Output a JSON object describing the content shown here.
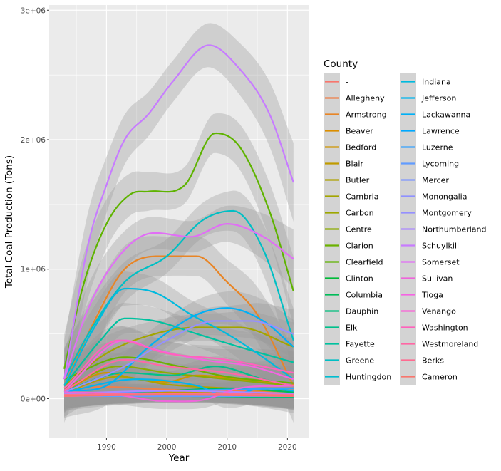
{
  "chart_data": {
    "type": "line",
    "xlabel": "Year",
    "ylabel": "Total Coal Production (Tons)",
    "xlim": [
      1980.5,
      2023.5
    ],
    "ylim": [
      -300000,
      3040000
    ],
    "x_ticks": [
      1990,
      2000,
      2010,
      2020
    ],
    "y_ticks": [
      {
        "value": 0,
        "label": "0e+00"
      },
      {
        "value": 1000000,
        "label": "1e+06"
      },
      {
        "value": 2000000,
        "label": "2e+06"
      },
      {
        "value": 3000000,
        "label": "3e+06"
      }
    ],
    "legend_title": "County",
    "legend_position": "right",
    "grid": true,
    "smoothing": "loess with confidence band",
    "series": [
      {
        "name": "-",
        "color": "#F8766D",
        "band": 60000,
        "points": [
          [
            1983,
            30000
          ],
          [
            1990,
            40000
          ],
          [
            2000,
            50000
          ],
          [
            2010,
            60000
          ],
          [
            2021,
            60000
          ]
        ]
      },
      {
        "name": "Allegheny",
        "color": "#EF7F49",
        "band": 80000,
        "points": [
          [
            1983,
            80000
          ],
          [
            1990,
            90000
          ],
          [
            2000,
            70000
          ],
          [
            2010,
            60000
          ],
          [
            2021,
            40000
          ]
        ]
      },
      {
        "name": "Armstrong",
        "color": "#E88526",
        "band": 150000,
        "points": [
          [
            1983,
            100000
          ],
          [
            1988,
            600000
          ],
          [
            1993,
            1000000
          ],
          [
            1999,
            1100000
          ],
          [
            2005,
            1100000
          ],
          [
            2010,
            900000
          ],
          [
            2015,
            650000
          ],
          [
            2021,
            100000
          ]
        ]
      },
      {
        "name": "Beaver",
        "color": "#DB8E00",
        "band": 60000,
        "points": [
          [
            1983,
            20000
          ],
          [
            2000,
            30000
          ],
          [
            2021,
            30000
          ]
        ]
      },
      {
        "name": "Bedford",
        "color": "#CF9400",
        "band": 80000,
        "points": [
          [
            1983,
            60000
          ],
          [
            1990,
            200000
          ],
          [
            1995,
            150000
          ],
          [
            2000,
            130000
          ],
          [
            2005,
            180000
          ],
          [
            2012,
            150000
          ],
          [
            2021,
            100000
          ]
        ]
      },
      {
        "name": "Blair",
        "color": "#C09B00",
        "band": 60000,
        "points": [
          [
            1983,
            40000
          ],
          [
            2000,
            50000
          ],
          [
            2021,
            30000
          ]
        ]
      },
      {
        "name": "Butler",
        "color": "#AFA100",
        "band": 70000,
        "points": [
          [
            1983,
            50000
          ],
          [
            1992,
            170000
          ],
          [
            2000,
            110000
          ],
          [
            2010,
            80000
          ],
          [
            2021,
            50000
          ]
        ]
      },
      {
        "name": "Cambria",
        "color": "#A3A500",
        "band": 100000,
        "points": [
          [
            1983,
            100000
          ],
          [
            1990,
            350000
          ],
          [
            1998,
            500000
          ],
          [
            2005,
            550000
          ],
          [
            2012,
            550000
          ],
          [
            2021,
            400000
          ]
        ]
      },
      {
        "name": "Carbon",
        "color": "#9DA700",
        "band": 50000,
        "points": [
          [
            1983,
            30000
          ],
          [
            2000,
            40000
          ],
          [
            2021,
            20000
          ]
        ]
      },
      {
        "name": "Centre",
        "color": "#8BAC00",
        "band": 80000,
        "points": [
          [
            1983,
            80000
          ],
          [
            1992,
            250000
          ],
          [
            2000,
            200000
          ],
          [
            2010,
            150000
          ],
          [
            2021,
            100000
          ]
        ]
      },
      {
        "name": "Clarion",
        "color": "#6BB100",
        "band": 100000,
        "points": [
          [
            1983,
            150000
          ],
          [
            1993,
            320000
          ],
          [
            2002,
            250000
          ],
          [
            2010,
            170000
          ],
          [
            2021,
            120000
          ]
        ]
      },
      {
        "name": "Clearfield",
        "color": "#5EB300",
        "band": 140000,
        "points": [
          [
            1983,
            230000
          ],
          [
            1986,
            850000
          ],
          [
            1990,
            1350000
          ],
          [
            1994,
            1580000
          ],
          [
            1997,
            1600000
          ],
          [
            2003,
            1650000
          ],
          [
            2008,
            2050000
          ],
          [
            2012,
            1950000
          ],
          [
            2017,
            1450000
          ],
          [
            2021,
            830000
          ]
        ]
      },
      {
        "name": "Clinton",
        "color": "#00BA38",
        "band": 50000,
        "points": [
          [
            1983,
            20000
          ],
          [
            2000,
            30000
          ],
          [
            2021,
            20000
          ]
        ]
      },
      {
        "name": "Columbia",
        "color": "#00BC59",
        "band": 50000,
        "points": [
          [
            1983,
            40000
          ],
          [
            2000,
            60000
          ],
          [
            2010,
            80000
          ],
          [
            2021,
            50000
          ]
        ]
      },
      {
        "name": "Dauphin",
        "color": "#00BF7D",
        "band": 50000,
        "points": [
          [
            1983,
            20000
          ],
          [
            2000,
            20000
          ],
          [
            2021,
            10000
          ]
        ]
      },
      {
        "name": "Elk",
        "color": "#00C08B",
        "band": 70000,
        "points": [
          [
            1983,
            60000
          ],
          [
            1993,
            200000
          ],
          [
            2001,
            180000
          ],
          [
            2008,
            250000
          ],
          [
            2016,
            150000
          ],
          [
            2021,
            100000
          ]
        ]
      },
      {
        "name": "Fayette",
        "color": "#00C19F",
        "band": 100000,
        "points": [
          [
            1983,
            100000
          ],
          [
            1989,
            450000
          ],
          [
            1993,
            620000
          ],
          [
            1998,
            600000
          ],
          [
            2005,
            500000
          ],
          [
            2012,
            400000
          ],
          [
            2021,
            280000
          ]
        ]
      },
      {
        "name": "Greene",
        "color": "#00BFC4",
        "band": 130000,
        "points": [
          [
            1983,
            150000
          ],
          [
            1987,
            500000
          ],
          [
            1993,
            900000
          ],
          [
            2000,
            1100000
          ],
          [
            2006,
            1380000
          ],
          [
            2011,
            1450000
          ],
          [
            2016,
            1150000
          ],
          [
            2021,
            450000
          ]
        ]
      },
      {
        "name": "Huntingdon",
        "color": "#00BDD0",
        "band": 50000,
        "points": [
          [
            1983,
            20000
          ],
          [
            2000,
            30000
          ],
          [
            2021,
            20000
          ]
        ]
      },
      {
        "name": "Indiana",
        "color": "#00BADE",
        "band": 110000,
        "points": [
          [
            1983,
            100000
          ],
          [
            1988,
            550000
          ],
          [
            1993,
            850000
          ],
          [
            1998,
            820000
          ],
          [
            2004,
            650000
          ],
          [
            2010,
            500000
          ],
          [
            2015,
            350000
          ],
          [
            2021,
            150000
          ]
        ]
      },
      {
        "name": "Jefferson",
        "color": "#00B4EF",
        "band": 80000,
        "points": [
          [
            1983,
            50000
          ],
          [
            1995,
            150000
          ],
          [
            2005,
            100000
          ],
          [
            2010,
            20000
          ],
          [
            2016,
            80000
          ],
          [
            2021,
            60000
          ]
        ]
      },
      {
        "name": "Lackawanna",
        "color": "#00B0F6",
        "band": 110000,
        "points": [
          [
            1983,
            60000
          ],
          [
            1990,
            100000
          ],
          [
            1997,
            400000
          ],
          [
            2005,
            650000
          ],
          [
            2010,
            700000
          ],
          [
            2016,
            600000
          ],
          [
            2021,
            400000
          ]
        ]
      },
      {
        "name": "Lawrence",
        "color": "#00A9FF",
        "band": 50000,
        "points": [
          [
            1983,
            20000
          ],
          [
            2000,
            30000
          ],
          [
            2021,
            20000
          ]
        ]
      },
      {
        "name": "Luzerne",
        "color": "#35A2FF",
        "band": 50000,
        "points": [
          [
            1983,
            40000
          ],
          [
            2000,
            60000
          ],
          [
            2021,
            80000
          ]
        ]
      },
      {
        "name": "Lycoming",
        "color": "#619CFF",
        "band": 50000,
        "points": [
          [
            1983,
            20000
          ],
          [
            2000,
            20000
          ],
          [
            2021,
            20000
          ]
        ]
      },
      {
        "name": "Mercer",
        "color": "#7F96FF",
        "band": 50000,
        "points": [
          [
            1983,
            30000
          ],
          [
            2000,
            40000
          ],
          [
            2021,
            30000
          ]
        ]
      },
      {
        "name": "Monongalia",
        "color": "#8F91FF",
        "band": 50000,
        "points": [
          [
            1983,
            20000
          ],
          [
            2000,
            30000
          ],
          [
            2021,
            20000
          ]
        ]
      },
      {
        "name": "Montgomery",
        "color": "#9590FF",
        "band": 100000,
        "points": [
          [
            1983,
            50000
          ],
          [
            1993,
            250000
          ],
          [
            2000,
            450000
          ],
          [
            2008,
            600000
          ],
          [
            2014,
            600000
          ],
          [
            2021,
            500000
          ]
        ]
      },
      {
        "name": "Northumberland",
        "color": "#AC88FF",
        "band": 60000,
        "points": [
          [
            1983,
            40000
          ],
          [
            2000,
            60000
          ],
          [
            2021,
            40000
          ]
        ]
      },
      {
        "name": "Schuylkill",
        "color": "#C77CFF",
        "band": 160000,
        "points": [
          [
            1983,
            150000
          ],
          [
            1987,
            1200000
          ],
          [
            1990,
            1650000
          ],
          [
            1993,
            2000000
          ],
          [
            1997,
            2200000
          ],
          [
            2001,
            2450000
          ],
          [
            2007,
            2730000
          ],
          [
            2012,
            2550000
          ],
          [
            2017,
            2200000
          ],
          [
            2021,
            1670000
          ]
        ]
      },
      {
        "name": "Somerset",
        "color": "#E16EF6",
        "band": 120000,
        "points": [
          [
            1983,
            150000
          ],
          [
            1987,
            700000
          ],
          [
            1993,
            1150000
          ],
          [
            1998,
            1280000
          ],
          [
            2004,
            1250000
          ],
          [
            2010,
            1350000
          ],
          [
            2016,
            1250000
          ],
          [
            2021,
            1080000
          ]
        ]
      },
      {
        "name": "Sullivan",
        "color": "#EE65DA",
        "band": 60000,
        "points": [
          [
            1983,
            50000
          ],
          [
            1990,
            40000
          ],
          [
            2000,
            -20000
          ],
          [
            2006,
            -10000
          ],
          [
            2012,
            80000
          ],
          [
            2021,
            100000
          ]
        ]
      },
      {
        "name": "Tioga",
        "color": "#F564E3",
        "band": 90000,
        "points": [
          [
            1983,
            60000
          ],
          [
            1993,
            450000
          ],
          [
            1998,
            380000
          ],
          [
            2006,
            300000
          ],
          [
            2014,
            250000
          ],
          [
            2021,
            150000
          ]
        ]
      },
      {
        "name": "Venango",
        "color": "#FB61D7",
        "band": 50000,
        "points": [
          [
            1983,
            20000
          ],
          [
            2000,
            30000
          ],
          [
            2021,
            20000
          ]
        ]
      },
      {
        "name": "Washington",
        "color": "#FF62BC",
        "band": 90000,
        "points": [
          [
            1983,
            80000
          ],
          [
            1992,
            450000
          ],
          [
            2000,
            350000
          ],
          [
            2010,
            300000
          ],
          [
            2021,
            200000
          ]
        ]
      },
      {
        "name": "Westmoreland",
        "color": "#FF67A4",
        "band": 80000,
        "points": [
          [
            1983,
            60000
          ],
          [
            1993,
            300000
          ],
          [
            2000,
            250000
          ],
          [
            2010,
            200000
          ],
          [
            2021,
            100000
          ]
        ]
      },
      {
        "name": "Berks",
        "color": "#FF6C91",
        "band": 50000,
        "points": [
          [
            1983,
            30000
          ],
          [
            2000,
            40000
          ],
          [
            2021,
            30000
          ]
        ]
      },
      {
        "name": "Cameron",
        "color": "#F8766D",
        "band": 50000,
        "points": [
          [
            1983,
            20000
          ],
          [
            2000,
            30000
          ],
          [
            2021,
            20000
          ]
        ]
      }
    ]
  }
}
